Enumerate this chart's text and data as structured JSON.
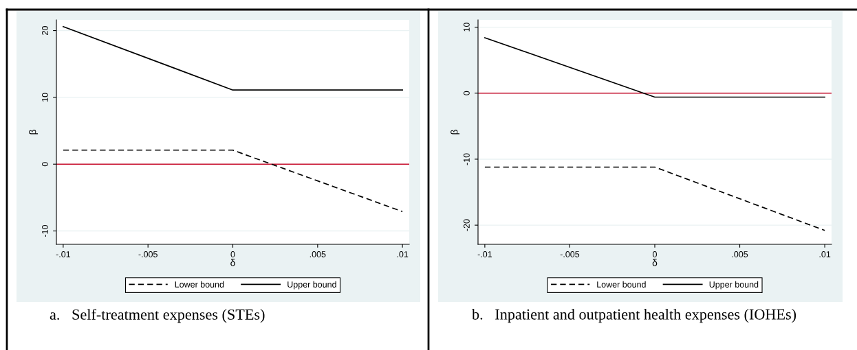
{
  "chart_data": [
    {
      "type": "line",
      "xlabel": "δ",
      "ylabel": "β",
      "x": [
        -0.01,
        0,
        0.01
      ],
      "series": [
        {
          "name": "Lower bound",
          "color": "#000000",
          "line_style": "dashed",
          "values": [
            2.1,
            2.1,
            -7.1
          ]
        },
        {
          "name": "Upper bound",
          "color": "#000000",
          "line_style": "solid",
          "values": [
            20.6,
            11.1,
            11.1
          ]
        }
      ],
      "xlim": [
        -0.0104,
        0.0104
      ],
      "ylim": [
        -12,
        21.6
      ],
      "xticks": [
        {
          "value": -0.01,
          "label": "-.01"
        },
        {
          "value": -0.005,
          "label": "-.005"
        },
        0,
        {
          "value": 0.005,
          "label": ".005"
        },
        {
          "value": 0.01,
          "label": ".01"
        }
      ],
      "yticks": [
        -10,
        0,
        10,
        20
      ],
      "ref_lines": [
        {
          "axis": "y",
          "value": 0,
          "color": "#c8102e"
        }
      ],
      "grid": "y",
      "legend": "bottom",
      "marker": "none",
      "annotations": [
        "a.   Self-treatment expenses (STEs)"
      ]
    },
    {
      "type": "line",
      "xlabel": "δ",
      "ylabel": "β",
      "x": [
        -0.01,
        0,
        0.01
      ],
      "series": [
        {
          "name": "Lower bound",
          "color": "#000000",
          "line_style": "dashed",
          "values": [
            -11.2,
            -11.2,
            -20.8
          ]
        },
        {
          "name": "Upper bound",
          "color": "#000000",
          "line_style": "solid",
          "values": [
            8.4,
            -0.6,
            -0.6
          ]
        }
      ],
      "xlim": [
        -0.0104,
        0.0104
      ],
      "ylim": [
        -22.9,
        11.1
      ],
      "xticks": [
        {
          "value": -0.01,
          "label": "-.01"
        },
        {
          "value": -0.005,
          "label": "-.005"
        },
        0,
        {
          "value": 0.005,
          "label": ".005"
        },
        {
          "value": 0.01,
          "label": ".01"
        }
      ],
      "yticks": [
        -20,
        -10,
        0,
        10
      ],
      "ref_lines": [
        {
          "axis": "y",
          "value": 0,
          "color": "#c8102e"
        }
      ],
      "grid": "y",
      "legend": "bottom",
      "marker": "none",
      "annotations": [
        "b.   Inpatient and outpatient health expenses (IOHEs)"
      ]
    }
  ]
}
